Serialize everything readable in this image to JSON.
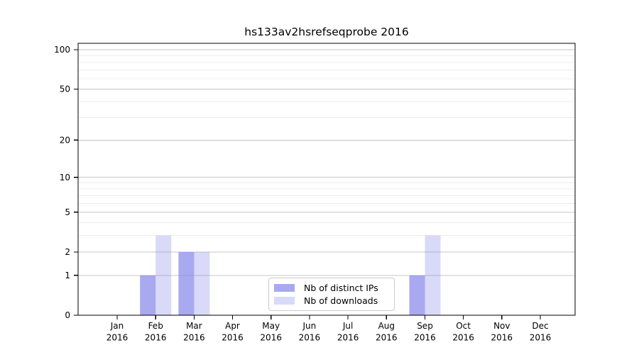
{
  "chart_data": {
    "type": "bar",
    "title": "hs133av2hsrefseqprobe 2016",
    "categories": [
      "Jan",
      "Feb",
      "Mar",
      "Apr",
      "May",
      "Jun",
      "Jul",
      "Aug",
      "Sep",
      "Oct",
      "Nov",
      "Dec"
    ],
    "year_label": "2016",
    "series": [
      {
        "name": "Nb of distinct IPs",
        "color": "#7c7ce8",
        "opacity": 0.66,
        "values": [
          0,
          1,
          2,
          0,
          0,
          0,
          0,
          0,
          1,
          0,
          0,
          0
        ]
      },
      {
        "name": "Nb of downloads",
        "color": "#7c7ce8",
        "opacity": 0.29,
        "values": [
          0,
          3,
          2,
          0,
          0,
          0,
          0,
          0,
          3,
          0,
          0,
          0
        ]
      }
    ],
    "xlabel": "",
    "ylabel": "",
    "yscale": "log1p",
    "ylim": [
      0,
      112
    ],
    "y_major_ticks": [
      0,
      1,
      2,
      5,
      10,
      20,
      50,
      100
    ],
    "y_minor_gridlines": [
      3,
      4,
      6,
      7,
      8,
      9,
      30,
      40,
      60,
      70,
      80,
      90
    ],
    "grid": "horizontal",
    "legend_position": "inside-bottom-center",
    "colors": {
      "major_grid": "#c7c7c7",
      "minor_grid": "#ececec",
      "axis": "#000000",
      "background": "#ffffff",
      "bar_dark_rendered": "#a8a8f0",
      "bar_light_rendered": "#d9d9f8"
    }
  }
}
